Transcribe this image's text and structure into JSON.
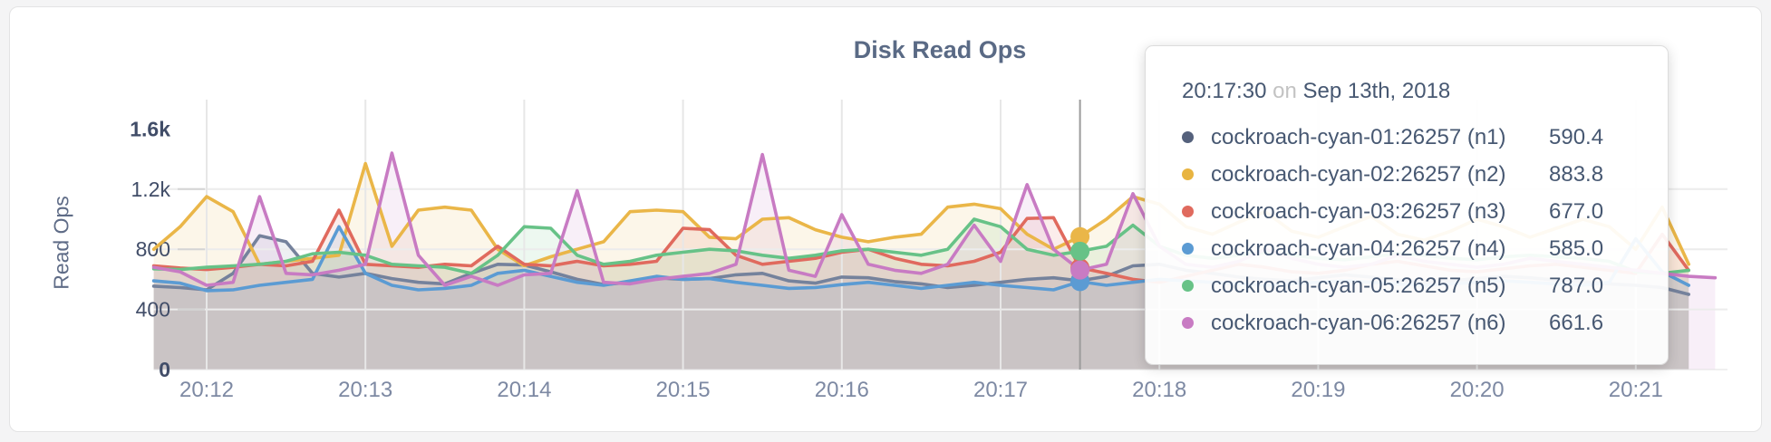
{
  "page": {
    "background": "#f4f4f5",
    "card_background": "#ffffff",
    "card_border": "#e3e3e4"
  },
  "chart": {
    "title": "Disk Read Ops",
    "ylabel": "Read Ops",
    "x_tick_color": "#7d89a3",
    "y_tick_color": "#414d68",
    "grid_h_color": "#ececec",
    "grid_v_color": "#e7e7e7",
    "tick_dash_color": "#d4d4d4",
    "hover_line_color": "#9b9b9b"
  },
  "chart_data": {
    "type": "line",
    "title": "Disk Read Ops",
    "xlabel": "",
    "ylabel": "Read Ops",
    "x_start": "20:11:40",
    "x_step_seconds": 10,
    "x_ticks": [
      "20:12",
      "20:13",
      "20:14",
      "20:15",
      "20:16",
      "20:17",
      "20:18",
      "20:19",
      "20:20",
      "20:21"
    ],
    "y_ticks": [
      {
        "label": "0",
        "value": 0
      },
      {
        "label": "400",
        "value": 400
      },
      {
        "label": "800",
        "value": 800
      },
      {
        "label": "1.2k",
        "value": 1200
      },
      {
        "label": "1.6k",
        "value": 1600
      }
    ],
    "ylim": [
      0,
      1600
    ],
    "grid": true,
    "legend_position": "tooltip",
    "area_opacity": 0.12,
    "series": [
      {
        "name": "cockroach-cyan-01:26257 (n1)",
        "color": "#75829c",
        "values": [
          555,
          545,
          530,
          640,
          890,
          850,
          640,
          615,
          640,
          605,
          580,
          570,
          640,
          700,
          695,
          650,
          600,
          565,
          580,
          610,
          600,
          605,
          630,
          640,
          590,
          575,
          615,
          610,
          585,
          570,
          545,
          560,
          580,
          600,
          610,
          590.4,
          620,
          690,
          700,
          660,
          640,
          615,
          600,
          590,
          610,
          630,
          615,
          595,
          580,
          590,
          605,
          620,
          610,
          595,
          585,
          570,
          560,
          545,
          500
        ]
      },
      {
        "name": "cockroach-cyan-02:26257 (n2)",
        "color": "#eab648",
        "values": [
          800,
          950,
          1150,
          1050,
          700,
          720,
          740,
          760,
          1370,
          820,
          1060,
          1080,
          1060,
          800,
          690,
          750,
          800,
          850,
          1050,
          1060,
          1050,
          880,
          870,
          1000,
          1010,
          930,
          880,
          850,
          880,
          900,
          1080,
          1100,
          1070,
          900,
          800,
          883.8,
          1000,
          1150,
          1100,
          950,
          900,
          980,
          1050,
          920,
          880,
          950,
          1020,
          900,
          860,
          920,
          1000,
          950,
          880,
          940,
          1000,
          950,
          800,
          1080,
          700
        ]
      },
      {
        "name": "cockroach-cyan-03:26257 (n3)",
        "color": "#e06a5e",
        "values": [
          690,
          675,
          665,
          680,
          700,
          690,
          720,
          1060,
          700,
          690,
          680,
          700,
          690,
          820,
          700,
          690,
          720,
          690,
          700,
          720,
          940,
          930,
          760,
          700,
          720,
          740,
          780,
          800,
          740,
          700,
          690,
          720,
          780,
          1005,
          1010,
          677.0,
          640,
          600,
          580,
          620,
          660,
          700,
          680,
          650,
          640,
          660,
          700,
          720,
          690,
          660,
          650,
          670,
          690,
          700,
          680,
          660,
          640,
          900,
          660
        ]
      },
      {
        "name": "cockroach-cyan-04:26257 (n4)",
        "color": "#5b9bd3",
        "values": [
          590,
          575,
          525,
          530,
          560,
          580,
          600,
          950,
          640,
          560,
          530,
          540,
          560,
          640,
          660,
          620,
          580,
          560,
          590,
          620,
          600,
          605,
          580,
          560,
          540,
          545,
          565,
          580,
          560,
          540,
          560,
          580,
          560,
          545,
          530,
          585.0,
          560,
          580,
          600,
          590,
          580,
          570,
          560,
          570,
          580,
          590,
          580,
          570,
          560,
          570,
          580,
          590,
          580,
          570,
          560,
          580,
          870,
          650,
          560
        ]
      },
      {
        "name": "cockroach-cyan-05:26257 (n5)",
        "color": "#67c287",
        "values": [
          670,
          665,
          680,
          690,
          700,
          720,
          770,
          780,
          760,
          700,
          690,
          680,
          640,
          760,
          950,
          940,
          760,
          700,
          720,
          760,
          780,
          800,
          790,
          760,
          740,
          760,
          790,
          800,
          780,
          760,
          800,
          1000,
          950,
          800,
          760,
          787.0,
          820,
          960,
          820,
          760,
          740,
          760,
          780,
          760,
          740,
          730,
          750,
          770,
          760,
          740,
          730,
          750,
          760,
          750,
          740,
          720,
          650,
          640,
          660
        ]
      },
      {
        "name": "cockroach-cyan-06:26257 (n6)",
        "color": "#c87bc3",
        "values": [
          680,
          650,
          560,
          580,
          1150,
          640,
          630,
          660,
          700,
          1440,
          760,
          560,
          620,
          560,
          630,
          640,
          1190,
          580,
          570,
          600,
          620,
          640,
          700,
          1430,
          660,
          620,
          1030,
          700,
          660,
          640,
          700,
          960,
          720,
          1230,
          800,
          661.6,
          700,
          1170,
          820,
          700,
          680,
          720,
          800,
          740,
          700,
          680,
          700,
          760,
          720,
          700,
          680,
          700,
          740,
          720,
          700,
          680,
          660,
          640,
          620,
          610
        ]
      }
    ]
  },
  "tooltip": {
    "time": "20:17:30",
    "on_word": "on",
    "date": "Sep 13th, 2018",
    "hover_index": 35,
    "rows": [
      {
        "name": "cockroach-cyan-01:26257 (n1)",
        "value": "590.4",
        "color": "#55617c"
      },
      {
        "name": "cockroach-cyan-02:26257 (n2)",
        "value": "883.8",
        "color": "#e8b440"
      },
      {
        "name": "cockroach-cyan-03:26257 (n3)",
        "value": "677.0",
        "color": "#e06a5e"
      },
      {
        "name": "cockroach-cyan-04:26257 (n4)",
        "value": "585.0",
        "color": "#5b9bd3"
      },
      {
        "name": "cockroach-cyan-05:26257 (n5)",
        "value": "787.0",
        "color": "#67c287"
      },
      {
        "name": "cockroach-cyan-06:26257 (n6)",
        "value": "661.6",
        "color": "#c87bc3"
      }
    ]
  }
}
